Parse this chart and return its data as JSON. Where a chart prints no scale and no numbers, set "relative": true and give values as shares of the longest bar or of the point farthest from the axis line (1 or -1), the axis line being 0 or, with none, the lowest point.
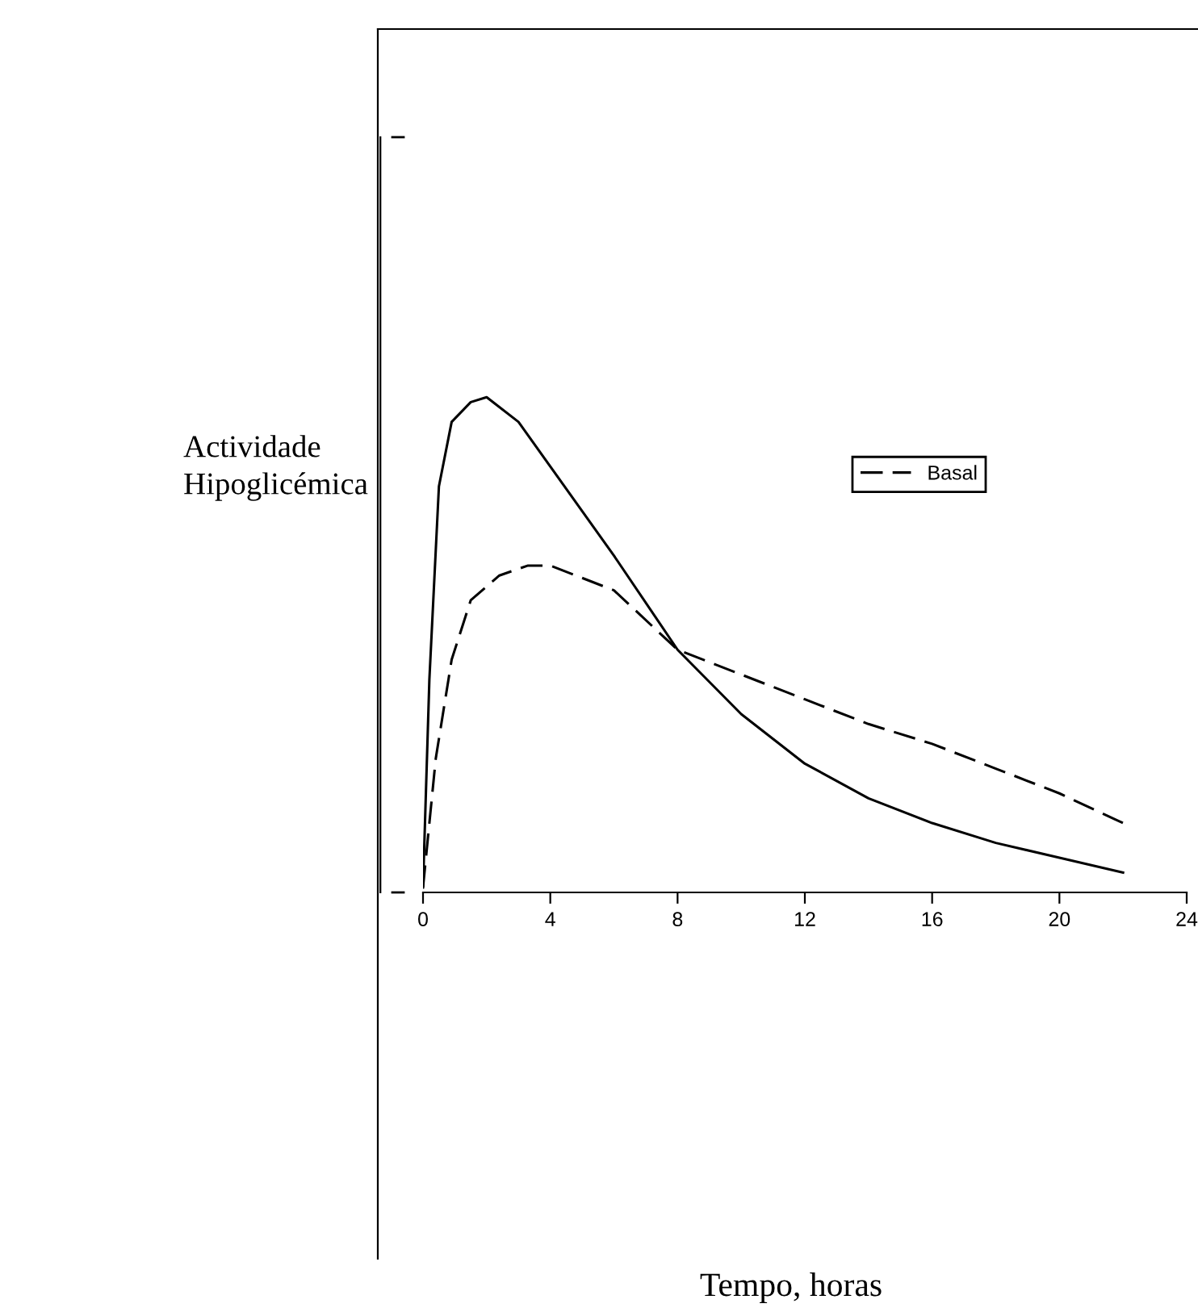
{
  "chart_data": {
    "type": "line",
    "annotations": [
      "Tempo, horas"
    ],
    "ylabel": "Actividade\nHipoglicémica",
    "relative": true,
    "xlim": [
      0,
      24
    ],
    "xticks": [
      0,
      4,
      8,
      12,
      16,
      20,
      24
    ],
    "grid": false,
    "legend": "top right",
    "series": [
      {
        "color": "#000000",
        "line_style": "solid",
        "x": [
          0,
          0.2,
          0.5,
          0.9,
          1.5,
          2.0,
          3.0,
          4,
          6,
          8,
          10,
          12,
          14,
          16,
          18,
          20,
          22
        ],
        "values": [
          0.01,
          0.43,
          0.82,
          0.95,
          0.99,
          1.0,
          0.95,
          0.86,
          0.68,
          0.49,
          0.36,
          0.26,
          0.19,
          0.14,
          0.1,
          0.07,
          0.04
        ]
      },
      {
        "name": "Basal",
        "color": "#000000",
        "line_style": "dashed",
        "x": [
          0,
          0.4,
          0.9,
          1.5,
          2.4,
          3.3,
          4,
          6,
          8,
          10,
          12,
          14,
          16,
          18,
          20,
          22
        ],
        "values": [
          0.01,
          0.27,
          0.47,
          0.59,
          0.64,
          0.66,
          0.66,
          0.61,
          0.49,
          0.44,
          0.39,
          0.34,
          0.3,
          0.25,
          0.2,
          0.14
        ]
      }
    ]
  }
}
